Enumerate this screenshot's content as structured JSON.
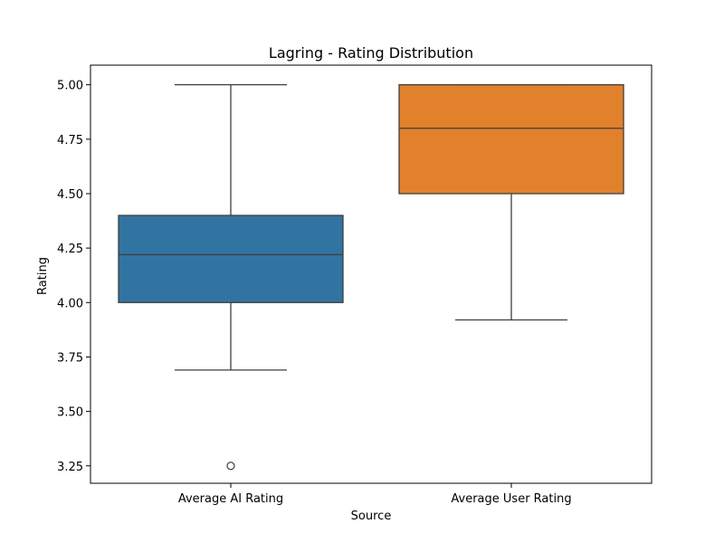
{
  "chart_data": {
    "type": "box",
    "title": "Lagring - Rating Distribution",
    "xlabel": "Source",
    "ylabel": "Rating",
    "ylim": [
      3.17,
      5.09
    ],
    "yticks": [
      "3.25",
      "3.50",
      "3.75",
      "4.00",
      "4.25",
      "4.50",
      "4.75",
      "5.00"
    ],
    "grid": false,
    "categories": [
      "Average AI Rating",
      "Average User Rating"
    ],
    "boxes": [
      {
        "category": "Average AI Rating",
        "whisker_low": 3.69,
        "q1": 4.0,
        "median": 4.22,
        "q3": 4.4,
        "whisker_high": 5.0,
        "outliers": [
          3.25
        ],
        "color": "#3274a1"
      },
      {
        "category": "Average User Rating",
        "whisker_low": 3.92,
        "q1": 4.5,
        "median": 4.8,
        "q3": 5.0,
        "whisker_high": 5.0,
        "outliers": [],
        "color": "#e1812c"
      }
    ]
  }
}
